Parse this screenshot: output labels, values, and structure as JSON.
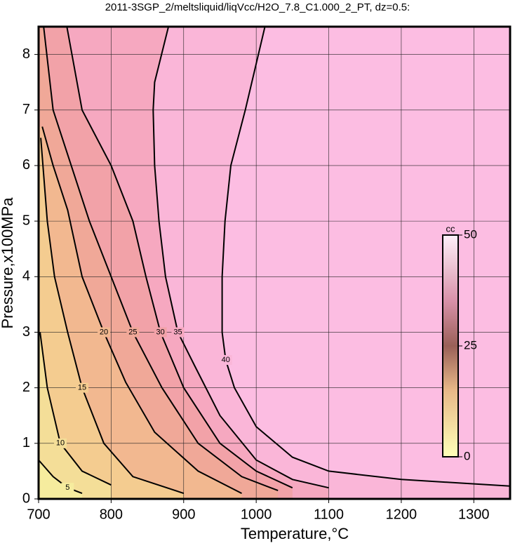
{
  "chart_data": {
    "type": "contour",
    "title": "2011-3SGP_2/meltsliquid/liqVcc/H2O_7.8_C1.000_2_PT, dz=0.5:",
    "xlabel": "Temperature,°C",
    "ylabel": "Pressure,x100MPa",
    "xlim": [
      700,
      1350
    ],
    "ylim": [
      0,
      8.5
    ],
    "xticks": [
      700,
      800,
      900,
      1000,
      1100,
      1200,
      1300
    ],
    "yticks": [
      0,
      1,
      2,
      3,
      4,
      5,
      6,
      7,
      8
    ],
    "grid": true,
    "background": "#fcbde2",
    "contours": [
      {
        "level": 40,
        "color": "#fab6d8",
        "x": [
          1012,
          985,
          965,
          957,
          953,
          953,
          958,
          970,
          1000,
          1050,
          1100,
          1200,
          1350
        ],
        "y": [
          8.5,
          7,
          6,
          5,
          4,
          3,
          2.5,
          2,
          1.3,
          0.75,
          0.5,
          0.35,
          0.23
        ]
      },
      {
        "level": 35,
        "color": "#f6a8c0",
        "x": [
          879,
          860,
          858,
          860,
          866,
          875,
          892,
          915,
          950,
          1000,
          1050,
          1100
        ],
        "y": [
          8.5,
          7.5,
          7,
          6,
          5,
          4,
          3,
          2.4,
          1.5,
          0.7,
          0.35,
          0.2
        ]
      },
      {
        "level": 30,
        "color": "#f2a2a8",
        "x": [
          739,
          760,
          800,
          830,
          848,
          868,
          900,
          950,
          1000,
          1050
        ],
        "y": [
          8.5,
          7,
          6,
          5,
          4,
          3,
          2,
          1,
          0.5,
          0.2
        ]
      },
      {
        "level": 25,
        "color": "#f0a898",
        "x": [
          707,
          720,
          735,
          770,
          800,
          830,
          870,
          920,
          980,
          1030
        ],
        "y": [
          8.5,
          7,
          6.4,
          5,
          4,
          3,
          2,
          1,
          0.4,
          0.15
        ]
      },
      {
        "level": 20,
        "color": "#f2b890",
        "x": [
          705,
          720,
          740,
          760,
          790,
          820,
          860,
          920,
          980
        ],
        "y": [
          6.7,
          6,
          5.2,
          4,
          3,
          2.1,
          1.2,
          0.5,
          0.1
        ]
      },
      {
        "level": 15,
        "color": "#f4cc90",
        "x": [
          703,
          712,
          722,
          740,
          760,
          790,
          830,
          900
        ],
        "y": [
          6.5,
          5,
          4,
          3,
          2,
          1,
          0.4,
          0.1
        ]
      },
      {
        "level": 10,
        "color": "#f4de98",
        "x": [
          702,
          712,
          730,
          760,
          800
        ],
        "y": [
          3,
          2,
          1,
          0.5,
          0.25
        ]
      },
      {
        "level": 5,
        "color": "#f6ec9e",
        "x": [
          700,
          720,
          740,
          760
        ],
        "y": [
          0.7,
          0.4,
          0.2,
          0.1
        ]
      }
    ],
    "colorbar": {
      "label": "cc",
      "lim": [
        0,
        50
      ],
      "ticks": [
        0,
        25,
        50
      ],
      "stops": [
        {
          "value": 0,
          "color": "#ffffb8"
        },
        {
          "value": 15,
          "color": "#e8b888"
        },
        {
          "value": 25,
          "color": "#9a6058"
        },
        {
          "value": 35,
          "color": "#d890a8"
        },
        {
          "value": 50,
          "color": "#fff0fa"
        }
      ]
    }
  }
}
